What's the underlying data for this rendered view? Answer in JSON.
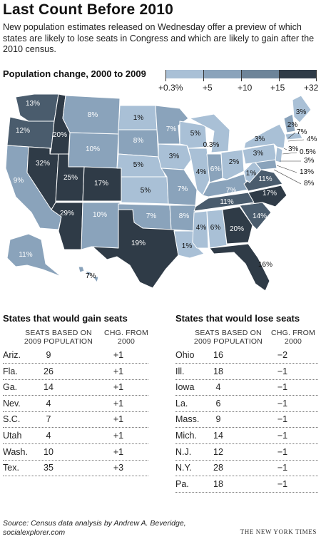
{
  "header": {
    "title": "Last Count Before 2010",
    "deck": "New population estimates released on Wednesday offer a preview of which states are likely to lose seats in Congress and which are likely to gain after the 2010 census."
  },
  "map": {
    "title": "Population change, 2000 to 2009",
    "legend": {
      "labels": [
        "+0.3%",
        "+5",
        "+10",
        "+15",
        "+32"
      ],
      "colors": [
        "#a9c0d6",
        "#8aa3bb",
        "#6d8499",
        "#4a5c6d",
        "#2f3b47"
      ]
    },
    "state_labels": [
      "13%",
      "12%",
      "20%",
      "8%",
      "1%",
      "7%",
      "5%",
      "3%",
      "7%",
      "3%",
      "2%",
      "4%",
      "3%",
      "0.5%",
      "3%",
      "13%",
      "8%",
      "32%",
      "25%",
      "17%",
      "10%",
      "8%",
      "5%",
      "3%",
      "0.3%",
      "5%",
      "6%",
      "2%",
      "3%",
      "9%",
      "5%",
      "7%",
      "4%",
      "7%",
      "1%",
      "11%",
      "17%",
      "29%",
      "10%",
      "7%",
      "8%",
      "11%",
      "14%",
      "19%",
      "1%",
      "4%",
      "6%",
      "20%",
      "16%",
      "11%",
      "7%"
    ]
  },
  "gain": {
    "title": "States that would gain seats",
    "col1": "SEATS BASED ON 2009 POPULATION",
    "col2": "CHG. FROM 2000",
    "rows": [
      {
        "state": "Ariz.",
        "seats": "9",
        "chg": "+1"
      },
      {
        "state": "Fla.",
        "seats": "26",
        "chg": "+1"
      },
      {
        "state": "Ga.",
        "seats": "14",
        "chg": "+1"
      },
      {
        "state": "Nev.",
        "seats": "4",
        "chg": "+1"
      },
      {
        "state": "S.C.",
        "seats": "7",
        "chg": "+1"
      },
      {
        "state": "Utah",
        "seats": "4",
        "chg": "+1"
      },
      {
        "state": "Wash.",
        "seats": "10",
        "chg": "+1"
      },
      {
        "state": "Tex.",
        "seats": "35",
        "chg": "+3"
      }
    ]
  },
  "lose": {
    "title": "States that would lose seats",
    "col1": "SEATS BASED ON 2009 POPULATION",
    "col2": "CHG. FROM 2000",
    "rows": [
      {
        "state": "Ohio",
        "seats": "16",
        "chg": "−2"
      },
      {
        "state": "Ill.",
        "seats": "18",
        "chg": "−1"
      },
      {
        "state": "Iowa",
        "seats": "4",
        "chg": "−1"
      },
      {
        "state": "La.",
        "seats": "6",
        "chg": "−1"
      },
      {
        "state": "Mass.",
        "seats": "9",
        "chg": "−1"
      },
      {
        "state": "Mich.",
        "seats": "14",
        "chg": "−1"
      },
      {
        "state": "N.J.",
        "seats": "12",
        "chg": "−1"
      },
      {
        "state": "N.Y.",
        "seats": "28",
        "chg": "−1"
      },
      {
        "state": "Pa.",
        "seats": "18",
        "chg": "−1"
      }
    ]
  },
  "footer": {
    "source": "Source: Census data analysis by Andrew A. Beveridge, socialexplorer.com",
    "credit": "THE NEW YORK TIMES"
  }
}
